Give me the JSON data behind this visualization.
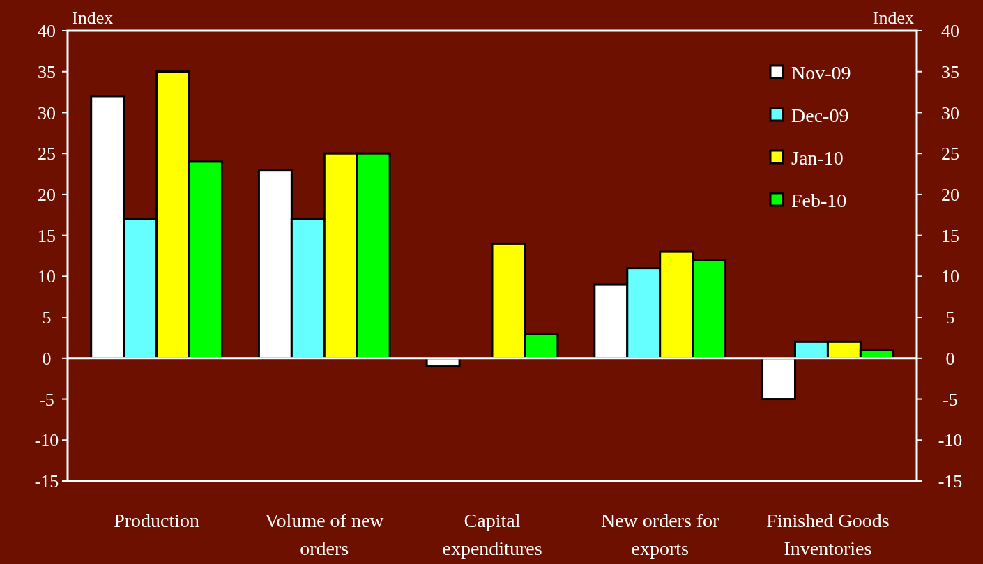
{
  "chart_data": {
    "type": "bar",
    "ylabel": "Index",
    "y2label": "Index",
    "categories": [
      "Production",
      "Volume of new orders",
      "Capital expenditures",
      "New orders for exports",
      "Finished Goods Inventories"
    ],
    "series": [
      {
        "name": "Nov-09",
        "color": "#ffffff",
        "values": [
          32,
          23,
          -1,
          9,
          -5
        ]
      },
      {
        "name": "Dec-09",
        "color": "#66ffff",
        "values": [
          17,
          17,
          0,
          11,
          2
        ]
      },
      {
        "name": "Jan-10",
        "color": "#ffff00",
        "values": [
          35,
          25,
          14,
          13,
          2
        ]
      },
      {
        "name": "Feb-10",
        "color": "#00ff00",
        "values": [
          24,
          25,
          3,
          12,
          1
        ]
      }
    ],
    "ylim": [
      -15,
      40
    ],
    "yticks": [
      -15,
      -10,
      -5,
      0,
      5,
      10,
      15,
      20,
      25,
      30,
      35,
      40
    ],
    "y2lim": [
      -15,
      40
    ],
    "y2ticks": [
      -15,
      -10,
      -5,
      0,
      5,
      10,
      15,
      20,
      25,
      30,
      35,
      40
    ],
    "legend": "top right"
  }
}
